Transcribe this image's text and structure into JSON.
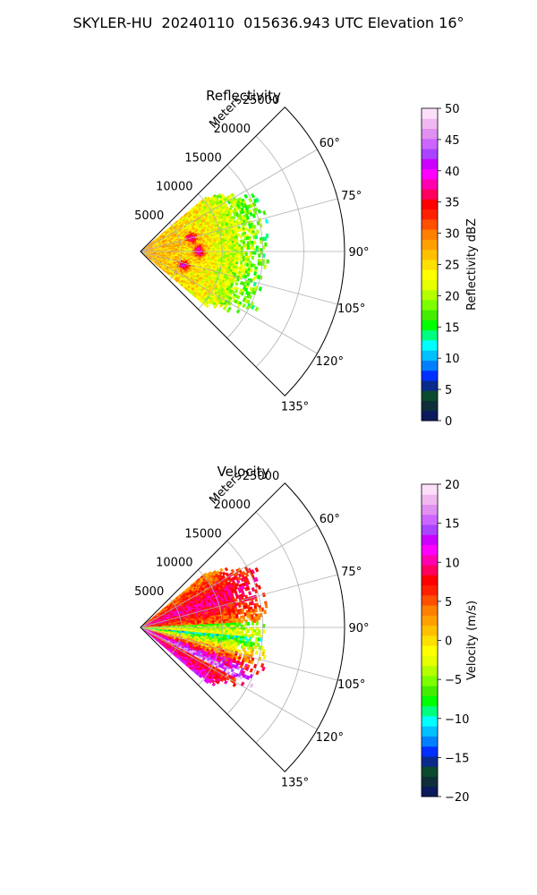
{
  "figure": {
    "suptitle": "SKYLER-HU  20240110  015636.943 UTC Elevation 16°"
  },
  "chart_data": [
    {
      "type": "heatmap",
      "projection": "polar-sector",
      "title": "Reflectivity",
      "range_label": "Meters",
      "range_ticks": [
        5000,
        10000,
        15000,
        20000,
        25000
      ],
      "range_tick_labels": [
        "5000",
        "10000",
        "15000",
        "20000",
        "25000"
      ],
      "rmax": 25000,
      "azimuth_range_deg": [
        45,
        135
      ],
      "azimuth_ticks": [
        60,
        75,
        90,
        105,
        120,
        135
      ],
      "azimuth_tick_labels": [
        "60°",
        "75°",
        "90°",
        "105°",
        "120°",
        "135°"
      ],
      "data_extent_m": 16000,
      "colorbar": {
        "label": "Reflectivity dBZ",
        "vmin": 0,
        "vmax": 50,
        "ticks": [
          0,
          5,
          10,
          15,
          20,
          25,
          30,
          35,
          40,
          45,
          50
        ],
        "tick_labels": [
          "0",
          "5",
          "10",
          "15",
          "20",
          "25",
          "30",
          "35",
          "40",
          "45",
          "50"
        ],
        "colors": [
          "#0c1a5c",
          "#0e2f3a",
          "#0b4a2c",
          "#0a2a8c",
          "#0030ff",
          "#0080ff",
          "#00c0ff",
          "#00ffff",
          "#00ff80",
          "#00ff00",
          "#44ee00",
          "#7cff00",
          "#b4ff00",
          "#e8ff00",
          "#ffff00",
          "#ffe000",
          "#ffc000",
          "#ffa000",
          "#ff8000",
          "#ff5000",
          "#ff2000",
          "#ff0000",
          "#ff0060",
          "#ff00b0",
          "#ff00ff",
          "#cc00ff",
          "#aa44ff",
          "#cc66ff",
          "#e090f0",
          "#f0b8f0",
          "#fce0fa"
        ]
      },
      "grid": true
    },
    {
      "type": "heatmap",
      "projection": "polar-sector",
      "title": "Velocity",
      "range_label": "Meters",
      "range_ticks": [
        5000,
        10000,
        15000,
        20000,
        25000
      ],
      "range_tick_labels": [
        "5000",
        "10000",
        "15000",
        "20000",
        "25000"
      ],
      "rmax": 25000,
      "azimuth_range_deg": [
        45,
        135
      ],
      "azimuth_ticks": [
        60,
        75,
        90,
        105,
        120,
        135
      ],
      "azimuth_tick_labels": [
        "60°",
        "75°",
        "90°",
        "105°",
        "120°",
        "135°"
      ],
      "data_extent_m": 16000,
      "colorbar": {
        "label": "Velocity (m/s)",
        "vmin": -20,
        "vmax": 20,
        "ticks": [
          -20,
          -15,
          -10,
          -5,
          0,
          5,
          10,
          15,
          20
        ],
        "tick_labels": [
          "−20",
          "−15",
          "−10",
          "−5",
          "0",
          "5",
          "10",
          "15",
          "20"
        ],
        "colors": [
          "#0c1a5c",
          "#0e2f3a",
          "#0b4a2c",
          "#0a2a8c",
          "#0030ff",
          "#0080ff",
          "#00c0ff",
          "#00ffff",
          "#00ff80",
          "#00ff00",
          "#44ee00",
          "#7cff00",
          "#b4ff00",
          "#e8ff00",
          "#ffff00",
          "#ffe000",
          "#ffc000",
          "#ffa000",
          "#ff8000",
          "#ff5000",
          "#ff2000",
          "#ff0000",
          "#ff0060",
          "#ff00b0",
          "#ff00ff",
          "#cc00ff",
          "#aa44ff",
          "#cc66ff",
          "#e090f0",
          "#f0b8f0",
          "#fce0fa"
        ]
      },
      "grid": true
    }
  ]
}
